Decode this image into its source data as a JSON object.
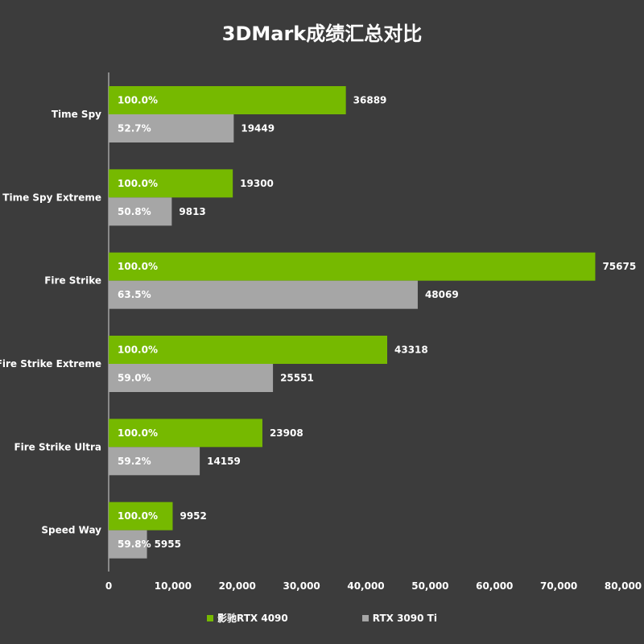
{
  "chart_data": {
    "type": "bar",
    "orientation": "horizontal",
    "title": "3DMark成绩汇总对比",
    "categories": [
      "Time Spy",
      "Time Spy Extreme",
      "Fire Strike",
      "Fire Strike Extreme",
      "Fire Strike Ultra",
      "Speed Way"
    ],
    "series": [
      {
        "name": "影驰RTX 4090",
        "color": "#76b900",
        "values": [
          36889,
          19300,
          75675,
          43318,
          23908,
          9952
        ],
        "percent_labels": [
          "100.0%",
          "100.0%",
          "100.0%",
          "100.0%",
          "100.0%",
          "100.0%"
        ]
      },
      {
        "name": "RTX 3090 Ti",
        "color": "#a6a6a6",
        "values": [
          19449,
          9813,
          48069,
          25551,
          14159,
          5955
        ],
        "percent_labels": [
          "52.7%",
          "50.8%",
          "63.5%",
          "59.0%",
          "59.2%",
          "59.8%"
        ]
      }
    ],
    "xlim": [
      0,
      80000
    ],
    "xticks": [
      0,
      10000,
      20000,
      30000,
      40000,
      50000,
      60000,
      70000,
      80000
    ],
    "xtick_labels": [
      "0",
      "10,000",
      "20,000",
      "30,000",
      "40,000",
      "50,000",
      "60,000",
      "70,000",
      "80,000"
    ],
    "grid": false,
    "legend_position": "bottom",
    "background_color": "#3c3c3c"
  }
}
